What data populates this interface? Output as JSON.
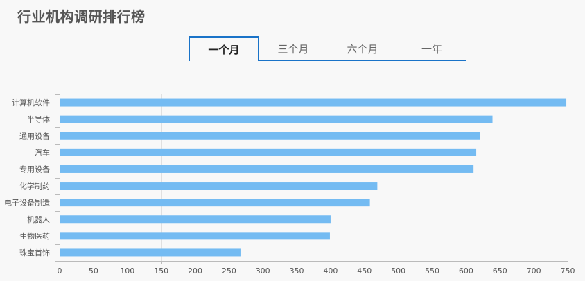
{
  "page": {
    "title": "行业机构调研排行榜"
  },
  "tabs": [
    {
      "label": "一个月",
      "active": true
    },
    {
      "label": "三个月",
      "active": false
    },
    {
      "label": "六个月",
      "active": false
    },
    {
      "label": "一年",
      "active": false
    }
  ],
  "colors": {
    "bar": "#74bbf2",
    "accent": "#1a73c8",
    "grid": "#e0e0e0",
    "text": "#555555"
  },
  "chart_data": {
    "type": "bar",
    "orientation": "horizontal",
    "title": "",
    "xlabel": "",
    "ylabel": "",
    "categories": [
      "计算机软件",
      "半导体",
      "通用设备",
      "汽车",
      "专用设备",
      "化学制药",
      "电子设备制造",
      "机器人",
      "生物医药",
      "珠宝首饰"
    ],
    "values": [
      748,
      639,
      621,
      615,
      611,
      469,
      458,
      400,
      399,
      267
    ],
    "xlim": [
      0,
      750
    ],
    "xticks": [
      0,
      50,
      100,
      150,
      200,
      250,
      300,
      350,
      400,
      450,
      500,
      550,
      600,
      650,
      700,
      750
    ],
    "grid": true
  }
}
